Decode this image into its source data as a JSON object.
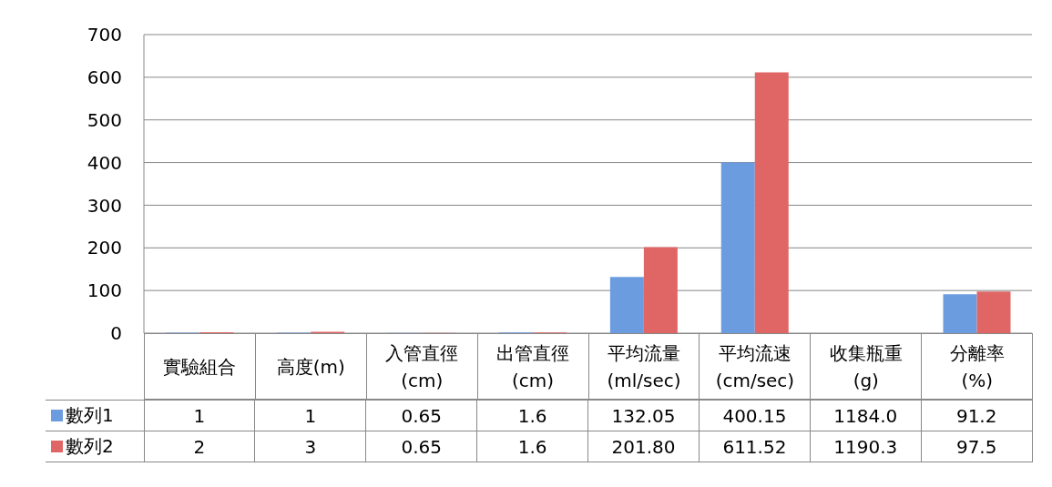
{
  "chart_data": {
    "type": "bar",
    "categories": [
      "實驗組合",
      "高度(m)",
      "入管直徑(cm)",
      "出管直徑(cm)",
      "平均流量(ml/sec)",
      "平均流速(cm/sec)",
      "收集瓶重(g)",
      "分離率(%)"
    ],
    "series": [
      {
        "name": "數列1",
        "color": "#6c9ce0",
        "values": [
          1,
          1,
          0.65,
          1.6,
          132.05,
          400.15,
          null,
          91.2
        ],
        "value_labels": [
          "1",
          "1",
          "0.65",
          "1.6",
          "132.05",
          "400.15",
          "1184.0",
          "91.2"
        ]
      },
      {
        "name": "數列2",
        "color": "#e06666",
        "values": [
          2,
          3,
          0.65,
          1.6,
          201.8,
          611.52,
          null,
          97.5
        ],
        "value_labels": [
          "2",
          "3",
          "0.65",
          "1.6",
          "201.80",
          "611.52",
          "1190.3",
          "97.5"
        ]
      }
    ],
    "ylim": [
      0,
      700
    ],
    "yticks": [
      0,
      100,
      200,
      300,
      400,
      500,
      600,
      700
    ],
    "grid": "y",
    "legend": "bottom left"
  }
}
